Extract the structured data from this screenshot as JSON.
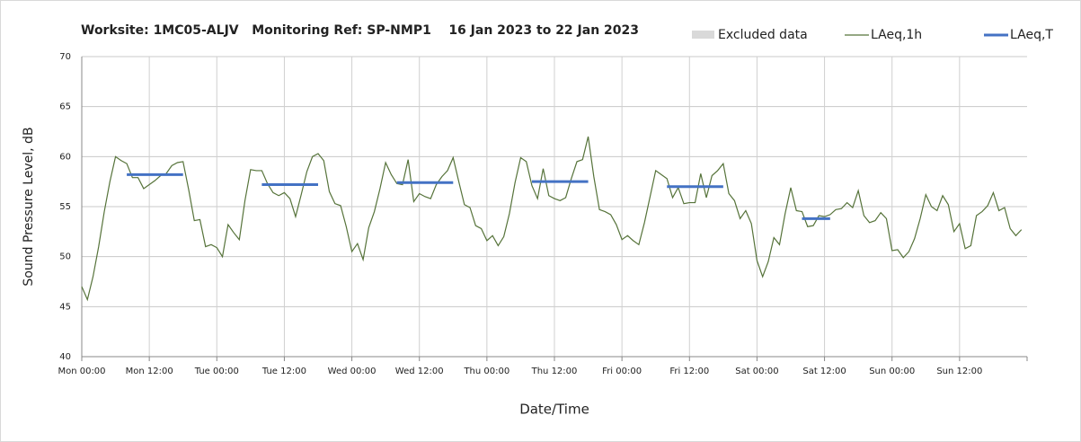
{
  "chart_data": {
    "type": "line",
    "title": "Worksite: 1MC05-ALJV   Monitoring Ref: SP-NMP1    16 Jan 2023 to 22 Jan 2023",
    "x_label": "Date/Time",
    "y_label": "Sound Pressure Level, dB",
    "excluded_data": {
      "name": "Excluded data",
      "color": "#d9d9d9"
    },
    "categories": [
      "Mon 00:00",
      null,
      null,
      null,
      null,
      null,
      null,
      null,
      null,
      null,
      null,
      null,
      "Mon 12:00",
      null,
      null,
      null,
      null,
      null,
      null,
      null,
      null,
      null,
      null,
      null,
      "Tue 00:00",
      null,
      null,
      null,
      null,
      null,
      null,
      null,
      null,
      null,
      null,
      null,
      "Tue 12:00",
      null,
      null,
      null,
      null,
      null,
      null,
      null,
      null,
      null,
      null,
      null,
      "Wed 00:00",
      null,
      null,
      null,
      null,
      null,
      null,
      null,
      null,
      null,
      null,
      null,
      "Wed 12:00",
      null,
      null,
      null,
      null,
      null,
      null,
      null,
      null,
      null,
      null,
      null,
      "Thu 00:00",
      null,
      null,
      null,
      null,
      null,
      null,
      null,
      null,
      null,
      null,
      null,
      "Thu 12:00",
      null,
      null,
      null,
      null,
      null,
      null,
      null,
      null,
      null,
      null,
      null,
      "Fri 00:00",
      null,
      null,
      null,
      null,
      null,
      null,
      null,
      null,
      null,
      null,
      null,
      "Fri 12:00",
      null,
      null,
      null,
      null,
      null,
      null,
      null,
      null,
      null,
      null,
      null,
      "Sat 00:00",
      null,
      null,
      null,
      null,
      null,
      null,
      null,
      null,
      null,
      null,
      null,
      "Sat 12:00",
      null,
      null,
      null,
      null,
      null,
      null,
      null,
      null,
      null,
      null,
      null,
      "Sun 00:00",
      null,
      null,
      null,
      null,
      null,
      null,
      null,
      null,
      null,
      null,
      null,
      "Sun 12:00",
      null,
      null,
      null,
      null,
      null,
      null,
      null,
      null,
      null,
      null,
      null
    ],
    "series": [
      {
        "name": "LAeq,1h",
        "color": "#56733a",
        "width": 1.2,
        "values": [
          47.0,
          45.7,
          48.0,
          51.0,
          54.5,
          57.5,
          60.0,
          59.6,
          59.3,
          57.9,
          57.9,
          56.8,
          57.2,
          57.6,
          58.1,
          58.3,
          59.1,
          59.4,
          59.5,
          56.7,
          53.6,
          53.7,
          51.0,
          51.2,
          50.9,
          50.0,
          53.2,
          52.4,
          51.7,
          55.6,
          58.7,
          58.6,
          58.6,
          57.3,
          56.4,
          56.1,
          56.4,
          55.8,
          54.0,
          56.2,
          58.5,
          60.0,
          60.3,
          59.6,
          56.5,
          55.3,
          55.1,
          53.0,
          50.5,
          51.3,
          49.7,
          52.9,
          54.5,
          56.8,
          59.4,
          58.2,
          57.3,
          57.2,
          59.7,
          55.5,
          56.3,
          56.0,
          55.8,
          57.2,
          58.0,
          58.6,
          59.9,
          57.5,
          55.2,
          54.9,
          53.1,
          52.8,
          51.6,
          52.1,
          51.1,
          52.0,
          54.3,
          57.4,
          59.9,
          59.5,
          57.1,
          55.8,
          58.8,
          56.1,
          55.8,
          55.6,
          55.9,
          57.8,
          59.5,
          59.7,
          62.0,
          58.0,
          54.7,
          54.5,
          54.2,
          53.2,
          51.7,
          52.1,
          51.6,
          51.2,
          53.4,
          56.0,
          58.6,
          58.2,
          57.8,
          55.9,
          56.9,
          55.3,
          55.4,
          55.4,
          58.3,
          55.9,
          58.1,
          58.6,
          59.3,
          56.3,
          55.6,
          53.8,
          54.6,
          53.3,
          49.6,
          48.0,
          49.5,
          51.9,
          51.2,
          54.3,
          56.9,
          54.6,
          54.5,
          53.0,
          53.1,
          54.1,
          54.0,
          54.2,
          54.7,
          54.8,
          55.4,
          54.9,
          56.6,
          54.1,
          53.4,
          53.6,
          54.4,
          53.8,
          50.6,
          50.7,
          49.9,
          50.5,
          51.8,
          53.8,
          56.2,
          55.0,
          54.6,
          56.1,
          55.2,
          52.5,
          53.3,
          50.8,
          51.1,
          54.1,
          54.5,
          55.1,
          56.4,
          54.6,
          54.9,
          52.8,
          52.1,
          52.7
        ]
      },
      {
        "name": "LAeq,T",
        "color": "#4472c4",
        "width": 3,
        "values": [
          null,
          null,
          null,
          null,
          null,
          null,
          null,
          null,
          58.2,
          58.2,
          58.2,
          58.2,
          58.2,
          58.2,
          58.2,
          58.2,
          58.2,
          58.2,
          58.2,
          null,
          null,
          null,
          null,
          null,
          null,
          null,
          null,
          null,
          null,
          null,
          null,
          null,
          57.2,
          57.2,
          57.2,
          57.2,
          57.2,
          57.2,
          57.2,
          57.2,
          57.2,
          57.2,
          57.2,
          null,
          null,
          null,
          null,
          null,
          null,
          null,
          null,
          null,
          null,
          null,
          null,
          null,
          57.4,
          57.4,
          57.4,
          57.4,
          57.4,
          57.4,
          57.4,
          57.4,
          57.4,
          57.4,
          57.4,
          null,
          null,
          null,
          null,
          null,
          null,
          null,
          null,
          null,
          null,
          null,
          null,
          null,
          57.5,
          57.5,
          57.5,
          57.5,
          57.5,
          57.5,
          57.5,
          57.5,
          57.5,
          57.5,
          57.5,
          null,
          null,
          null,
          null,
          null,
          null,
          null,
          null,
          null,
          null,
          null,
          null,
          null,
          57.0,
          57.0,
          57.0,
          57.0,
          57.0,
          57.0,
          57.0,
          57.0,
          57.0,
          57.0,
          57.0,
          null,
          null,
          null,
          null,
          null,
          null,
          null,
          null,
          null,
          null,
          null,
          null,
          null,
          53.8,
          53.8,
          53.8,
          53.8,
          53.8,
          53.8,
          null,
          null,
          null,
          null,
          null,
          null,
          null,
          null,
          null,
          null,
          null,
          null,
          null,
          null,
          null,
          null,
          null,
          null,
          null,
          null,
          null,
          null,
          null,
          null,
          null,
          null,
          null,
          null,
          null,
          null,
          null,
          null,
          null,
          null
        ]
      }
    ],
    "ylim": [
      40,
      70
    ],
    "yticks": [
      40,
      45,
      50,
      55,
      60,
      65,
      70
    ],
    "grid": true
  }
}
